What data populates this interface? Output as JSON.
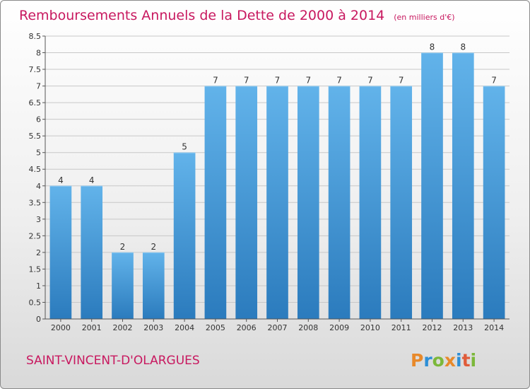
{
  "header": {
    "title": "Remboursements Annuels de la Dette de 2000 à 2014",
    "unit": "(en milliers d'€)"
  },
  "commune": "SAINT-VINCENT-D'OLARGUES",
  "brand": {
    "letters": [
      "P",
      "r",
      "o",
      "x",
      "i",
      "t",
      "i"
    ],
    "colors": [
      "#e8892a",
      "#2e8fd6",
      "#7cb83a",
      "#e8892a",
      "#2e8fd6",
      "#e05c3a",
      "#7cb83a"
    ]
  },
  "colors": {
    "bar_light": "#62b3ea",
    "bar_dark": "#2b7bbd",
    "grid": "#c8c8c8"
  },
  "chart_data": {
    "type": "bar",
    "title": "Remboursements Annuels de la Dette de 2000 à 2014",
    "xlabel": "",
    "ylabel": "",
    "categories": [
      "2000",
      "2001",
      "2002",
      "2003",
      "2004",
      "2005",
      "2006",
      "2007",
      "2008",
      "2009",
      "2010",
      "2011",
      "2012",
      "2013",
      "2014"
    ],
    "values": [
      4,
      4,
      2,
      2,
      5,
      7,
      7,
      7,
      7,
      7,
      7,
      7,
      8,
      8,
      7
    ],
    "labels": [
      "4",
      "4",
      "2",
      "2",
      "5",
      "7",
      "7",
      "7",
      "7",
      "7",
      "7",
      "7",
      "8",
      "8",
      "7"
    ],
    "ylim": [
      0,
      8.5
    ],
    "yticks": [
      0,
      0.5,
      1,
      1.5,
      2,
      2.5,
      3,
      3.5,
      4,
      4.5,
      5,
      5.5,
      6,
      6.5,
      7,
      7.5,
      8,
      8.5
    ],
    "ytick_labels": [
      "0",
      "0.5",
      "1",
      "1.5",
      "2",
      "2.5",
      "3",
      "3.5",
      "4",
      "4.5",
      "5",
      "5.5",
      "6",
      "6.5",
      "7",
      "7.5",
      "8",
      "8.5"
    ],
    "grid": true
  }
}
